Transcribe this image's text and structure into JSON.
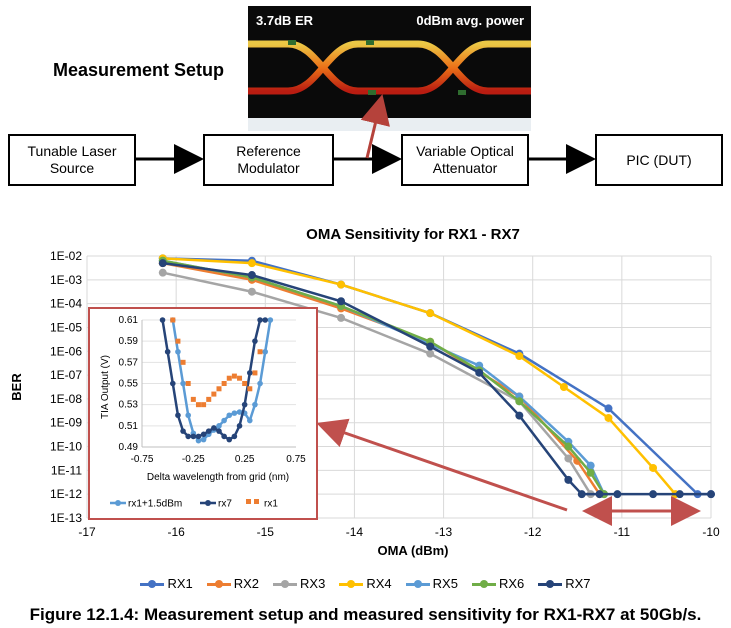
{
  "setup": {
    "title": "Measurement Setup",
    "boxes": [
      {
        "id": "laser",
        "label": "Tunable Laser\nSource"
      },
      {
        "id": "modulator",
        "label": "Reference\nModulator"
      },
      {
        "id": "voa",
        "label": "Variable Optical\nAttenuator"
      },
      {
        "id": "dut",
        "label": "PIC (DUT)"
      }
    ],
    "eye_label_left": "3.7dB ER",
    "eye_label_right": "0dBm avg. power"
  },
  "chart_data": [
    {
      "type": "line",
      "title": "OMA Sensitivity for RX1 - RX7",
      "xlabel": "OMA (dBm)",
      "ylabel": "BER",
      "xlim": [
        -17,
        -10
      ],
      "ylim_exp": [
        -13,
        -2
      ],
      "log_y": true,
      "grid": true,
      "x_ticks": [
        "-17",
        "-16",
        "-15",
        "-14",
        "-13",
        "-12",
        "-11",
        "-10"
      ],
      "y_ticks": [
        "1E-02",
        "1E-03",
        "1E-04",
        "1E-05",
        "1E-06",
        "1E-07",
        "1E-08",
        "1E-09",
        "1E-10",
        "1E-11",
        "1E-12",
        "1E-13"
      ],
      "legend_position": "bottom",
      "series": [
        {
          "name": "RX1",
          "color": "#4472c4",
          "x": [
            -16.15,
            -15.15,
            -14.15,
            -13.15,
            -12.15,
            -11.15,
            -10.15,
            -10.0
          ],
          "log10_y": [
            -2.1,
            -2.2,
            -3.2,
            -4.4,
            -6.1,
            -8.4,
            -12.0,
            -12.0
          ]
        },
        {
          "name": "RX2",
          "color": "#ed7d31",
          "x": [
            -16.15,
            -15.15,
            -14.15,
            -13.15,
            -12.15,
            -11.5,
            -11.25
          ],
          "log10_y": [
            -2.3,
            -3.0,
            -4.2,
            -5.6,
            -7.9,
            -10.6,
            -12.0
          ]
        },
        {
          "name": "RX3",
          "color": "#a5a5a5",
          "x": [
            -16.15,
            -15.15,
            -14.15,
            -13.15,
            -12.15,
            -11.6,
            -11.35
          ],
          "log10_y": [
            -2.7,
            -3.5,
            -4.6,
            -6.1,
            -8.1,
            -10.5,
            -12.0
          ]
        },
        {
          "name": "RX4",
          "color": "#ffc000",
          "x": [
            -16.15,
            -15.15,
            -14.15,
            -13.15,
            -12.15,
            -11.65,
            -11.15,
            -10.65,
            -10.4
          ],
          "log10_y": [
            -2.1,
            -2.3,
            -3.2,
            -4.4,
            -6.2,
            -7.5,
            -8.8,
            -10.9,
            -12.0
          ]
        },
        {
          "name": "RX5",
          "color": "#5b9bd5",
          "x": [
            -16.15,
            -15.15,
            -14.15,
            -13.15,
            -12.6,
            -12.15,
            -11.6,
            -11.35,
            -11.2
          ],
          "log10_y": [
            -2.2,
            -2.9,
            -4.1,
            -5.7,
            -6.6,
            -7.9,
            -9.8,
            -10.8,
            -12.0
          ]
        },
        {
          "name": "RX6",
          "color": "#70ad47",
          "x": [
            -16.15,
            -15.15,
            -14.15,
            -13.15,
            -12.6,
            -12.15,
            -11.6,
            -11.35,
            -11.2
          ],
          "log10_y": [
            -2.2,
            -2.9,
            -4.1,
            -5.6,
            -6.8,
            -8.1,
            -10.0,
            -11.1,
            -12.0
          ]
        },
        {
          "name": "RX7",
          "color": "#264478",
          "x": [
            -16.15,
            -15.15,
            -14.15,
            -13.15,
            -12.6,
            -12.15,
            -11.6,
            -11.45,
            -11.25,
            -11.05,
            -10.65,
            -10.35,
            -10.0
          ],
          "log10_y": [
            -2.3,
            -2.8,
            -3.9,
            -5.8,
            -6.9,
            -8.7,
            -11.4,
            -12.0,
            -12.0,
            -12.0,
            -12.0,
            -12.0,
            -12.0
          ]
        }
      ]
    },
    {
      "type": "line",
      "title": "",
      "xlabel": "Delta wavelength from grid (nm)",
      "ylabel": "TIA Output (V)",
      "xlim": [
        -0.75,
        0.75
      ],
      "ylim": [
        0.49,
        0.61
      ],
      "x_ticks": [
        "-0.75",
        "-0.25",
        "0.25",
        "0.75"
      ],
      "y_ticks": [
        "0.61",
        "0.59",
        "0.57",
        "0.55",
        "0.53",
        "0.51",
        "0.49"
      ],
      "legend_position": "bottom",
      "series": [
        {
          "name": "rx1+1.5dBm",
          "color": "#5b9bd5",
          "x": [
            -0.45,
            -0.4,
            -0.35,
            -0.3,
            -0.25,
            -0.2,
            -0.15,
            -0.1,
            -0.05,
            0.0,
            0.05,
            0.1,
            0.15,
            0.2,
            0.25,
            0.3,
            0.35,
            0.4,
            0.45,
            0.5
          ],
          "y": [
            0.61,
            0.58,
            0.55,
            0.52,
            0.503,
            0.496,
            0.497,
            0.502,
            0.506,
            0.51,
            0.515,
            0.52,
            0.522,
            0.523,
            0.522,
            0.515,
            0.53,
            0.55,
            0.58,
            0.61
          ]
        },
        {
          "name": "rx7",
          "color": "#264478",
          "x": [
            -0.55,
            -0.5,
            -0.45,
            -0.4,
            -0.35,
            -0.3,
            -0.25,
            -0.2,
            -0.15,
            -0.1,
            -0.05,
            0.0,
            0.05,
            0.1,
            0.15,
            0.2,
            0.25,
            0.3,
            0.35,
            0.4,
            0.45
          ],
          "y": [
            0.61,
            0.58,
            0.55,
            0.52,
            0.505,
            0.5,
            0.5,
            0.5,
            0.502,
            0.505,
            0.508,
            0.505,
            0.5,
            0.497,
            0.5,
            0.51,
            0.53,
            0.56,
            0.59,
            0.61,
            0.61
          ]
        },
        {
          "name": "rx1",
          "color": "#ed7d31",
          "x": [
            -0.45,
            -0.4,
            -0.35,
            -0.3,
            -0.25,
            -0.2,
            -0.15,
            -0.1,
            -0.05,
            0.0,
            0.05,
            0.1,
            0.15,
            0.2,
            0.25,
            0.3,
            0.35,
            0.4
          ],
          "y": [
            0.61,
            0.59,
            0.57,
            0.55,
            0.535,
            0.53,
            0.53,
            0.535,
            0.54,
            0.545,
            0.55,
            0.555,
            0.557,
            0.555,
            0.55,
            0.545,
            0.56,
            0.58
          ]
        }
      ]
    }
  ],
  "caption": "Figure 12.1.4: Measurement setup and measured sensitivity for RX1-RX7 at 50Gb/s."
}
